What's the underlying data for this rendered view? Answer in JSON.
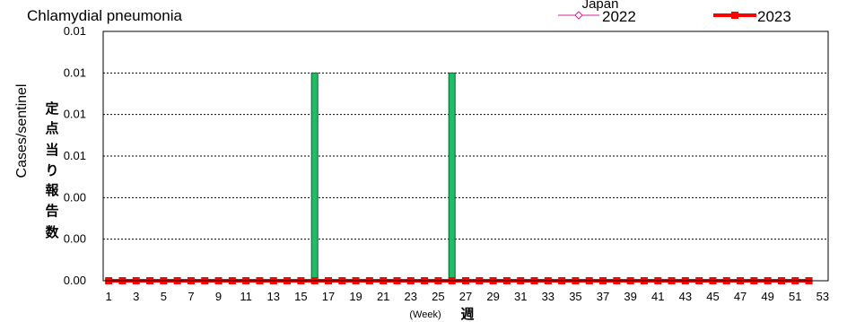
{
  "title": "Chlamydial pneumonia",
  "region": "Japan",
  "ylabel": "Cases/sentinel",
  "ylabel_jp": "定点当り報告数",
  "xlabel": "(Week)",
  "xlabel_jp": "週",
  "colors": {
    "line2022": "#d020a0",
    "line2023": "#ff0000",
    "bar": "#22bb66",
    "bar_edge": "#006633"
  },
  "chart_data": {
    "type": "bar",
    "title": "Chlamydial pneumonia",
    "xlabel": "(Week)",
    "ylabel": "Cases/sentinel",
    "ylim": [
      0,
      0.012
    ],
    "y_ticks": [
      0,
      0.002,
      0.004,
      0.006,
      0.008,
      0.01,
      0.012
    ],
    "y_tick_labels": [
      "0.00",
      "0.00",
      "0.00",
      "0.01",
      "0.01",
      "0.01",
      "0.01"
    ],
    "x_ticks": [
      1,
      3,
      5,
      7,
      9,
      11,
      13,
      15,
      17,
      19,
      21,
      23,
      25,
      27,
      29,
      31,
      33,
      35,
      37,
      39,
      41,
      43,
      45,
      47,
      49,
      51,
      53
    ],
    "x_tick_labels": [
      "1",
      "3",
      "5",
      "7",
      "9",
      "11",
      "13",
      "15",
      "17",
      "19",
      "21",
      "23",
      "25",
      "27",
      "29",
      "31",
      "33",
      "35",
      "37",
      "39",
      "41",
      "43",
      "45",
      "47",
      "49",
      "51",
      "53"
    ],
    "grid": true,
    "legend": "top-right",
    "bars": {
      "weeks": [
        16,
        26
      ],
      "values": [
        0.01,
        0.01
      ]
    },
    "series": [
      {
        "name": "2022",
        "weeks": [],
        "values": []
      },
      {
        "name": "2023",
        "weeks": [
          1,
          2,
          3,
          4,
          5,
          6,
          7,
          8,
          9,
          10,
          11,
          12,
          13,
          14,
          15,
          16,
          17,
          18,
          19,
          20,
          21,
          22,
          23,
          24,
          25,
          26,
          27,
          28,
          29,
          30,
          31,
          32,
          33,
          34,
          35,
          36,
          37,
          38,
          39,
          40,
          41,
          42,
          43,
          44,
          45,
          46,
          47,
          48,
          49,
          50,
          51,
          52
        ],
        "values": [
          0,
          0,
          0,
          0,
          0,
          0,
          0,
          0,
          0,
          0,
          0,
          0,
          0,
          0,
          0,
          0,
          0,
          0,
          0,
          0,
          0,
          0,
          0,
          0,
          0,
          0,
          0,
          0,
          0,
          0,
          0,
          0,
          0,
          0,
          0,
          0,
          0,
          0,
          0,
          0,
          0,
          0,
          0,
          0,
          0,
          0,
          0,
          0,
          0,
          0,
          0,
          0
        ]
      }
    ]
  }
}
